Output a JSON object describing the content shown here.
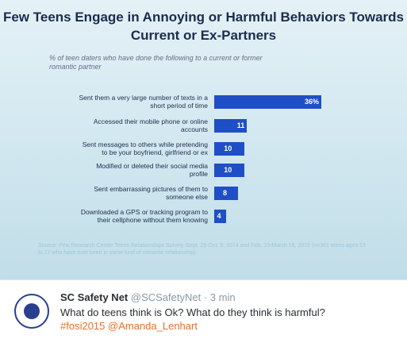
{
  "chart_data": {
    "type": "bar",
    "orientation": "horizontal",
    "title": "Few Teens Engage in Annoying or Harmful Behaviors Towards Current or Ex-Partners",
    "subtitle": "% of teen daters who have done the following to a current or former romantic partner",
    "categories": [
      "Sent them a very large number of texts in a short period of time",
      "Accessed their mobile phone or online accounts",
      "Sent messages to others while pretending to be your boyfriend, girlfriend or ex",
      "Modified or deleted their social media profile",
      "Sent embarrassing pictures of them to someone else",
      "Downloaded a GPS or tracking program to their cellphone without them knowing"
    ],
    "values": [
      36,
      11,
      10,
      10,
      8,
      4
    ],
    "value_labels": [
      "36%",
      "11",
      "10",
      "10",
      "8",
      "4"
    ],
    "color": "#1f4fc6",
    "source": "Source: Pew Research Center Teens Relationships Survey, Sept. 25-Oct. 9, 2014 and Feb. 10-March 16, 2015 (n=361 teens ages 13 to 17 who have ever been in some kind of romantic relationship)."
  },
  "tweet": {
    "name": "SC Safety Net",
    "handle": "@SCSafetyNet",
    "time": "· 3 min",
    "text": "What do teens think is Ok? What do they think is harmful?",
    "hashtag": "#fosi2015",
    "mention": "@Amanda_Lenhart"
  }
}
